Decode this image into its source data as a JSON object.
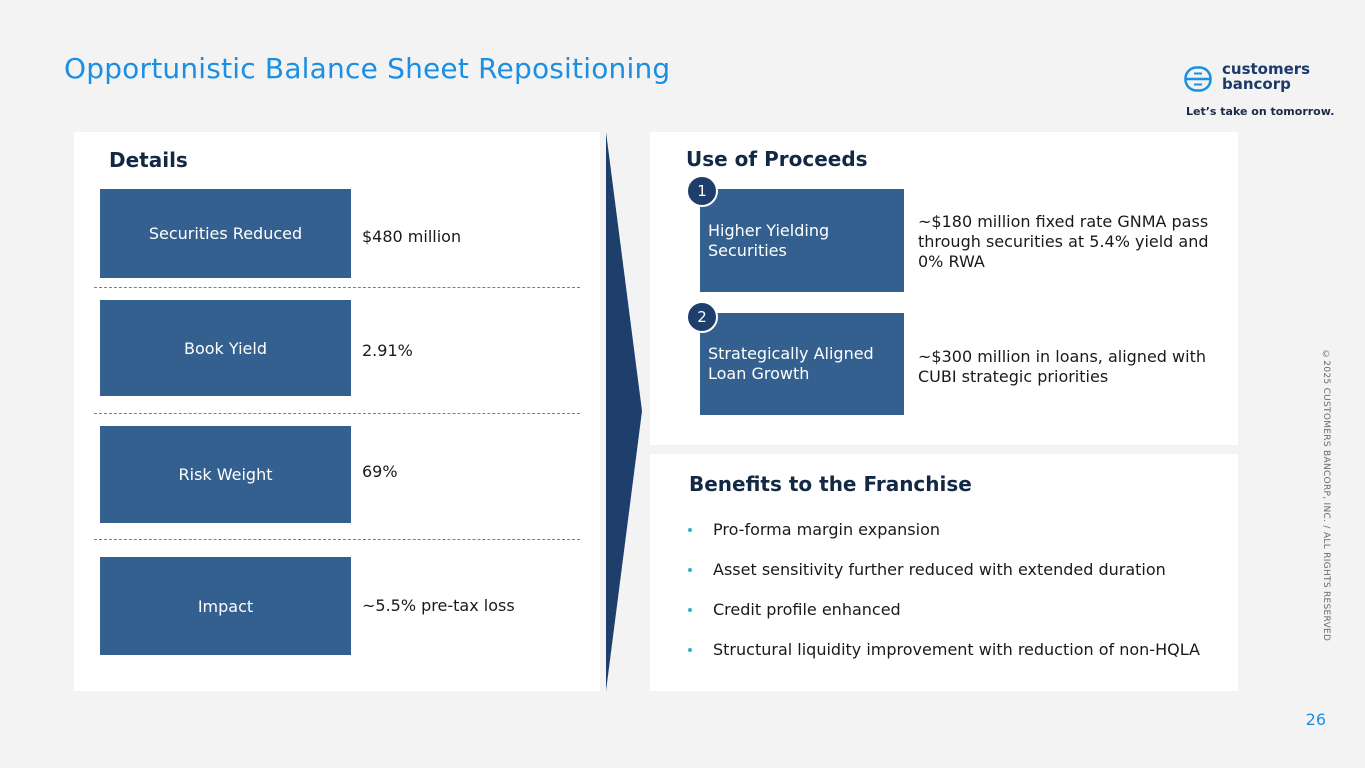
{
  "header": {
    "title": "Opportunistic Balance Sheet Repositioning"
  },
  "logo": {
    "line1": "customers",
    "line2": "bancorp",
    "tagline": "Let’s take on tomorrow."
  },
  "copyright": "©2025 CUSTOMERS BANCORP, INC. / ALL RIGHTS RESERVED",
  "page_number": "26",
  "details": {
    "title": "Details",
    "items": [
      {
        "label": "Securities Reduced",
        "value": "$480 million"
      },
      {
        "label": "Book Yield",
        "value": "2.91%"
      },
      {
        "label": "Risk Weight",
        "value": "69%"
      },
      {
        "label": "Impact",
        "value": "~5.5% pre-tax loss"
      }
    ]
  },
  "proceeds": {
    "title": "Use of Proceeds",
    "items": [
      {
        "number": "1",
        "label": "Higher Yielding Securities",
        "description": "~$180 million fixed rate GNMA pass through securities at 5.4% yield and 0% RWA"
      },
      {
        "number": "2",
        "label": "Strategically Aligned Loan Growth",
        "description": "~$300 million in loans, aligned with CUBI strategic priorities"
      }
    ]
  },
  "benefits": {
    "title": "Benefits to the Franchise",
    "items": [
      "Pro-forma margin expansion",
      "Asset sensitivity further reduced with extended duration",
      "Credit profile enhanced",
      "Structural liquidity improvement with reduction of non-HQLA"
    ]
  },
  "colors": {
    "accent": "#1a8fe3",
    "box": "#34608f",
    "navy": "#1e3e6b",
    "bullet": "#2bb3c6"
  }
}
